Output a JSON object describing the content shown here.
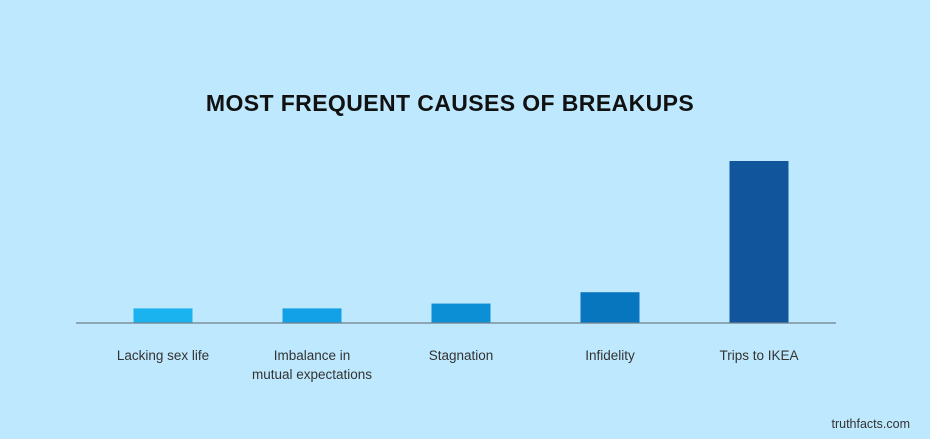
{
  "chart_data": {
    "type": "bar",
    "title": "MOST FREQUENT CAUSES OF BREAKUPS",
    "categories": [
      "Lacking sex life",
      "Imbalance in mutual expectations",
      "Stagnation",
      "Infidelity",
      "Trips to IKEA"
    ],
    "category_lines": [
      [
        "Lacking sex life"
      ],
      [
        "Imbalance in",
        "mutual expectations"
      ],
      [
        "Stagnation"
      ],
      [
        "Infidelity"
      ],
      [
        "Trips to IKEA"
      ]
    ],
    "values": [
      9,
      9,
      12,
      19,
      100
    ],
    "ylim": [
      0,
      100
    ],
    "grid": false,
    "y_axis_shown": false,
    "colors": [
      "#1ab2ef",
      "#12a0e6",
      "#0c8fd5",
      "#0875bf",
      "#11569c"
    ],
    "axis_color": "#6f7f8c",
    "background": "#bde8fd"
  },
  "footer": {
    "credit": "truthfacts.com"
  }
}
